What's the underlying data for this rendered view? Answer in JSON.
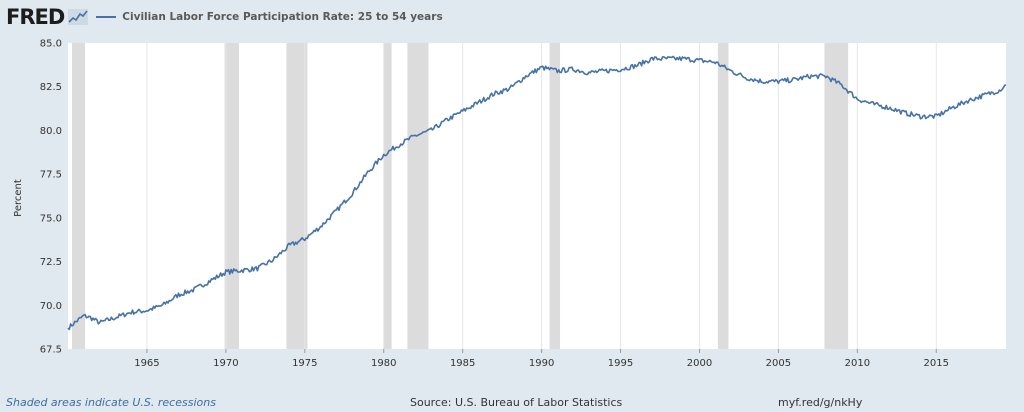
{
  "header": {
    "logo_text": "FRED",
    "logo_icon": "line-graph-icon",
    "series_title": "Civilian Labor Force Participation Rate: 25 to 54 years"
  },
  "footer": {
    "note": "Shaded areas indicate U.S. recessions",
    "source": "Source: U.S. Bureau of Labor Statistics",
    "url": "myf.red/g/nkHy"
  },
  "colors": {
    "series": "#4572a7",
    "recession": "#dcdcdc",
    "background": "#e1e9f0",
    "plot": "#ffffff"
  },
  "chart_data": {
    "type": "line",
    "title": "Civilian Labor Force Participation Rate: 25 to 54 years",
    "xlabel": "",
    "ylabel": "Percent",
    "xlim": [
      "1960-01",
      "2019-06"
    ],
    "ylim": [
      67.5,
      85.0
    ],
    "y_ticks": [
      "67.5",
      "70.0",
      "72.5",
      "75.0",
      "77.5",
      "80.0",
      "82.5",
      "85.0"
    ],
    "x_ticks": [
      "1965",
      "1970",
      "1975",
      "1980",
      "1985",
      "1990",
      "1995",
      "2000",
      "2005",
      "2010",
      "2015"
    ],
    "grid": "vertical",
    "legend": "top-left",
    "recessions": [
      [
        "1960-04",
        "1961-02"
      ],
      [
        "1969-12",
        "1970-11"
      ],
      [
        "1973-11",
        "1975-03"
      ],
      [
        "1980-01",
        "1980-07"
      ],
      [
        "1981-07",
        "1982-11"
      ],
      [
        "1990-07",
        "1991-03"
      ],
      [
        "2001-03",
        "2001-11"
      ],
      [
        "2007-12",
        "2009-06"
      ]
    ],
    "series": [
      {
        "name": "Civilian Labor Force Participation Rate: 25 to 54 years",
        "points": [
          [
            "1960-01",
            68.7
          ],
          [
            "1960-06",
            69.0
          ],
          [
            "1961-01",
            69.4
          ],
          [
            "1961-06",
            69.3
          ],
          [
            "1962-01",
            69.0
          ],
          [
            "1963-01",
            69.3
          ],
          [
            "1964-01",
            69.6
          ],
          [
            "1965-01",
            69.7
          ],
          [
            "1966-01",
            70.0
          ],
          [
            "1967-01",
            70.6
          ],
          [
            "1968-01",
            70.9
          ],
          [
            "1969-01",
            71.4
          ],
          [
            "1970-01",
            71.9
          ],
          [
            "1971-01",
            72.0
          ],
          [
            "1972-01",
            72.1
          ],
          [
            "1973-01",
            72.6
          ],
          [
            "1974-01",
            73.4
          ],
          [
            "1975-01",
            73.8
          ],
          [
            "1976-01",
            74.5
          ],
          [
            "1977-01",
            75.4
          ],
          [
            "1978-01",
            76.4
          ],
          [
            "1979-01",
            77.6
          ],
          [
            "1980-01",
            78.6
          ],
          [
            "1981-01",
            79.2
          ],
          [
            "1982-01",
            79.7
          ],
          [
            "1983-01",
            80.0
          ],
          [
            "1984-01",
            80.6
          ],
          [
            "1985-01",
            81.1
          ],
          [
            "1986-01",
            81.6
          ],
          [
            "1987-01",
            82.1
          ],
          [
            "1988-01",
            82.4
          ],
          [
            "1989-01",
            83.1
          ],
          [
            "1990-01",
            83.6
          ],
          [
            "1991-01",
            83.4
          ],
          [
            "1992-01",
            83.5
          ],
          [
            "1993-01",
            83.3
          ],
          [
            "1994-01",
            83.4
          ],
          [
            "1995-01",
            83.5
          ],
          [
            "1996-01",
            83.7
          ],
          [
            "1997-01",
            84.1
          ],
          [
            "1998-01",
            84.1
          ],
          [
            "1999-01",
            84.1
          ],
          [
            "2000-01",
            84.0
          ],
          [
            "2001-01",
            83.9
          ],
          [
            "2002-01",
            83.4
          ],
          [
            "2003-01",
            83.0
          ],
          [
            "2004-01",
            82.8
          ],
          [
            "2005-01",
            82.8
          ],
          [
            "2006-01",
            82.9
          ],
          [
            "2007-01",
            83.1
          ],
          [
            "2008-01",
            83.1
          ],
          [
            "2009-01",
            82.6
          ],
          [
            "2010-01",
            81.8
          ],
          [
            "2011-01",
            81.5
          ],
          [
            "2012-01",
            81.3
          ],
          [
            "2013-01",
            81.0
          ],
          [
            "2014-01",
            80.8
          ],
          [
            "2015-01",
            80.8
          ],
          [
            "2016-01",
            81.3
          ],
          [
            "2017-01",
            81.7
          ],
          [
            "2018-01",
            82.0
          ],
          [
            "2019-01",
            82.3
          ],
          [
            "2019-06",
            82.6
          ]
        ]
      }
    ]
  }
}
